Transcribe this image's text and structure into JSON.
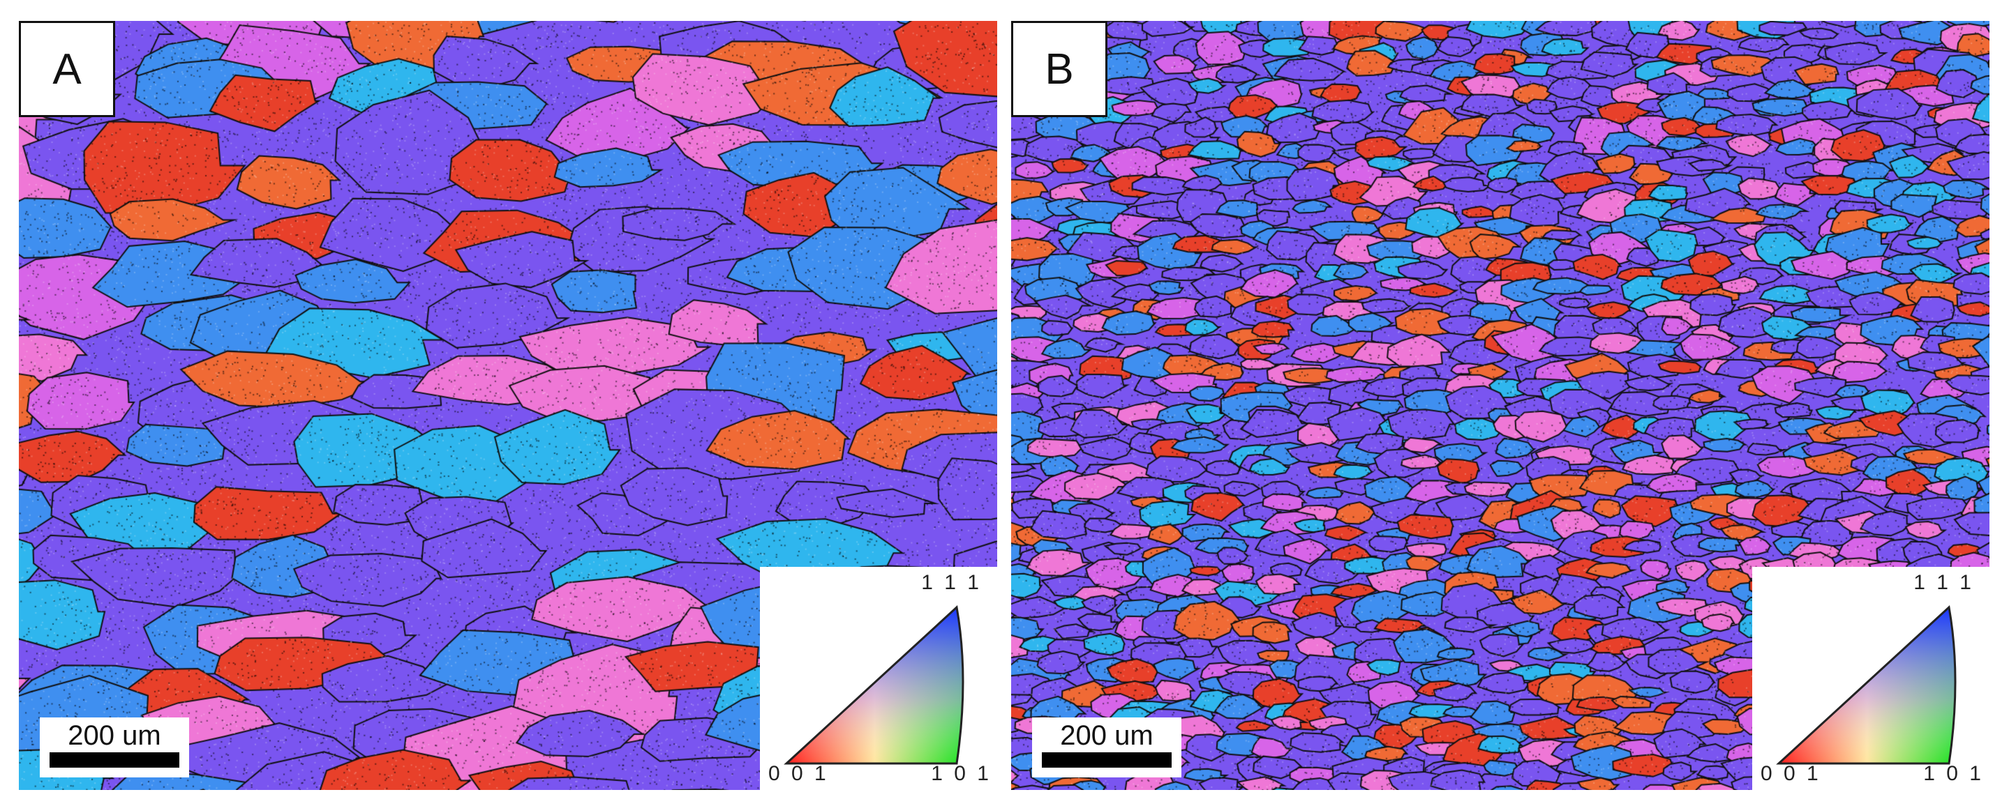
{
  "panels": [
    {
      "label": "A",
      "scale_bar": "200 um",
      "legend": {
        "top": "1 1 1",
        "left": "0 0 1",
        "right": "1 0 1"
      },
      "grain_size": "coarse"
    },
    {
      "label": "B",
      "scale_bar": "200 um",
      "legend": {
        "top": "1 1 1",
        "left": "0 0 1",
        "right": "1 0 1"
      },
      "grain_size": "fine"
    }
  ],
  "colors": {
    "violet": "#7a55f0",
    "blue": "#3f8ff0",
    "cyan": "#2fb6ee",
    "magenta": "#d764e8",
    "pink": "#ef77d6",
    "orange": "#f06a35",
    "red": "#e8402a",
    "boundary": "#111111"
  }
}
